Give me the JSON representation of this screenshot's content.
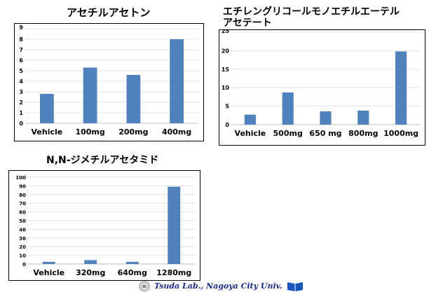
{
  "chart_data": [
    {
      "type": "bar",
      "title": "アセチルアセトン",
      "categories": [
        "Vehicle",
        "100mg",
        "200mg",
        "400mg"
      ],
      "values": [
        2.8,
        5.3,
        4.6,
        8.0
      ],
      "ylim": [
        0,
        9
      ],
      "yticks": [
        0,
        1,
        2,
        3,
        4,
        5,
        6,
        7,
        8,
        9
      ],
      "grid": true,
      "bar_color": "#4f81bd"
    },
    {
      "type": "bar",
      "title_lines": [
        "エチレングリコールモノエチルエーテル",
        "アセテート"
      ],
      "categories": [
        "Vehicle",
        "500mg",
        "650 mg",
        "800mg",
        "1000mg"
      ],
      "values": [
        2.7,
        8.7,
        3.6,
        3.8,
        19.8
      ],
      "ylim": [
        0,
        25
      ],
      "yticks": [
        0,
        5,
        10,
        15,
        20,
        25
      ],
      "grid": true,
      "bar_color": "#4f81bd"
    },
    {
      "type": "bar",
      "title": "N,N-ジメチルアセタミド",
      "categories": [
        "Vehicle",
        "320mg",
        "640mg",
        "1280mg"
      ],
      "values": [
        2.5,
        4.5,
        2.5,
        89
      ],
      "ylim": [
        0,
        100
      ],
      "yticks": [
        0,
        10,
        20,
        30,
        40,
        50,
        60,
        70,
        80,
        90,
        100
      ],
      "grid": true,
      "bar_color": "#4f81bd"
    }
  ],
  "footer": {
    "credit": "Tsuda Lab., Nagoya City Univ.",
    "seal_icon": "university-seal-icon",
    "book_icon": "book-logo-icon"
  }
}
